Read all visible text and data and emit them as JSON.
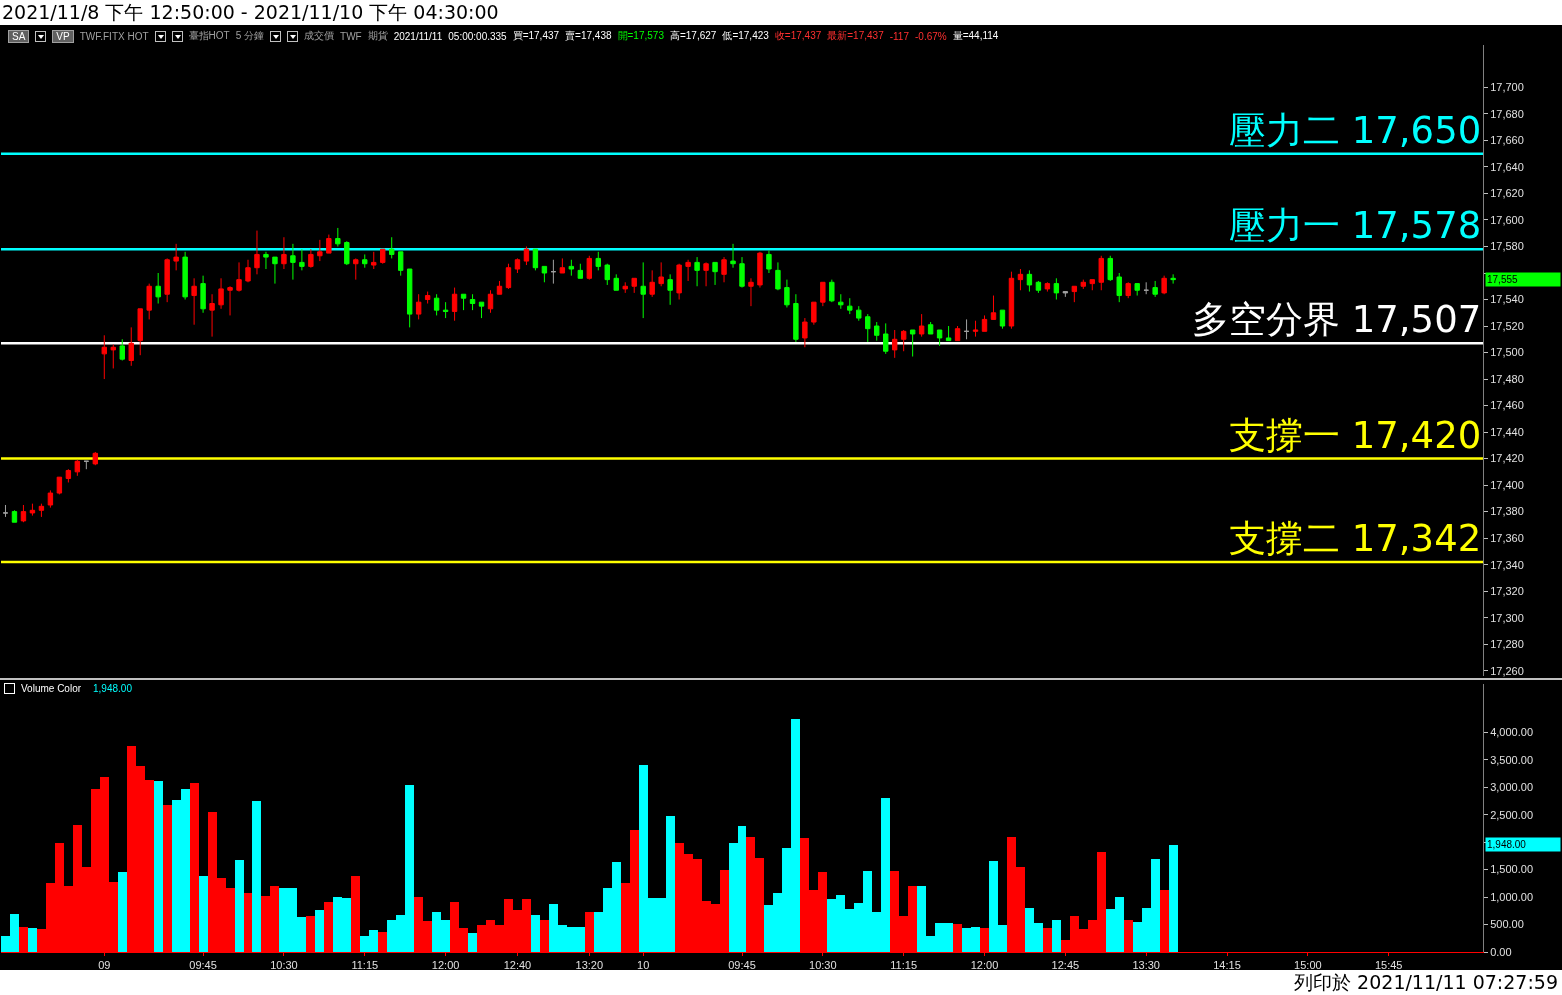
{
  "chart_data": [
    {
      "type": "candlestick",
      "title": "2021/11/8 下午 12:50:00 - 2021/11/10 下午 04:30:00",
      "annotations": [
        "SA",
        "VP",
        "TWF.FITX HOT",
        "臺指HOT",
        "5 分鐘",
        "成交價",
        "TWF",
        "期貨",
        "2021/11/11",
        "05:00:00.335",
        "買=17,437",
        "賣=17,438",
        "開=17,573",
        "高=17,627",
        "低=17,423",
        "收=17,437",
        "最新=17,437",
        "-117",
        "-0.67%",
        "量=44,114",
        "17,555"
      ],
      "categories": [
        null,
        null,
        null,
        null,
        null,
        null,
        null,
        null,
        null,
        null,
        null,
        null,
        null,
        null,
        null,
        null,
        null,
        null,
        null,
        null,
        null,
        null,
        null,
        null,
        null,
        null,
        null,
        null,
        null,
        null,
        null,
        null,
        null,
        null,
        null,
        null,
        null,
        null,
        null,
        null,
        null,
        null,
        null,
        null,
        null,
        null,
        null,
        null,
        null,
        null,
        null,
        null,
        null,
        null,
        null,
        null,
        null,
        null,
        null,
        null,
        null,
        null,
        null,
        null,
        null,
        null,
        null,
        null,
        null,
        null,
        null,
        null,
        null,
        null,
        null,
        null,
        null,
        null,
        null,
        null,
        null,
        null,
        null,
        null,
        null,
        null,
        null,
        null,
        null,
        null,
        null,
        null,
        null,
        null,
        null,
        null,
        null,
        null,
        null,
        null,
        null,
        null,
        null,
        null,
        null,
        null,
        null,
        null,
        null,
        null,
        null,
        null,
        null,
        null,
        null,
        null,
        null,
        null,
        null,
        null,
        null,
        null,
        null,
        null,
        null,
        null,
        null,
        null,
        null,
        null,
        null,
        null,
        null,
        null,
        null,
        null,
        null,
        null,
        null,
        null,
        null,
        null,
        null,
        null,
        null,
        null,
        null,
        null,
        null,
        null,
        null,
        null,
        null,
        null,
        null,
        null,
        null,
        null,
        null,
        null,
        null,
        null,
        null,
        null,
        null
      ],
      "ohlc": [
        [
          17379,
          17385,
          17376,
          17379
        ],
        [
          17380,
          17381,
          17372,
          17372
        ],
        [
          17373,
          17385,
          17372,
          17380
        ],
        [
          17379,
          17386,
          17377,
          17381
        ],
        [
          17381,
          17386,
          17376,
          17384
        ],
        [
          17385,
          17396,
          17383,
          17394
        ],
        [
          17394,
          17406,
          17393,
          17406
        ],
        [
          17405,
          17412,
          17402,
          17411
        ],
        [
          17410,
          17419,
          17407,
          17418
        ],
        [
          17418,
          17418,
          17412,
          17418
        ],
        [
          17416,
          17425,
          17415,
          17424
        ],
        [
          17499,
          17513,
          17480,
          17504
        ],
        [
          17502,
          17506,
          17488,
          17504
        ],
        [
          17505,
          17510,
          17494,
          17495
        ],
        [
          17494,
          17519,
          17490,
          17507
        ],
        [
          17509,
          17533,
          17498,
          17533
        ],
        [
          17532,
          17552,
          17525,
          17550
        ],
        [
          17550,
          17560,
          17537,
          17542
        ],
        [
          17544,
          17571,
          17538,
          17570
        ],
        [
          17569,
          17582,
          17562,
          17572
        ],
        [
          17572,
          17576,
          17540,
          17542
        ],
        [
          17543,
          17556,
          17521,
          17550
        ],
        [
          17552,
          17558,
          17530,
          17533
        ],
        [
          17532,
          17544,
          17512,
          17537
        ],
        [
          17536,
          17556,
          17533,
          17548
        ],
        [
          17547,
          17550,
          17528,
          17549
        ],
        [
          17547,
          17568,
          17546,
          17555
        ],
        [
          17554,
          17570,
          17553,
          17564
        ],
        [
          17564,
          17592,
          17559,
          17574
        ],
        [
          17574,
          17576,
          17563,
          17572
        ],
        [
          17572,
          17572,
          17552,
          17567
        ],
        [
          17567,
          17587,
          17563,
          17574
        ],
        [
          17573,
          17582,
          17555,
          17568
        ],
        [
          17568,
          17578,
          17562,
          17565
        ],
        [
          17565,
          17578,
          17564,
          17574
        ],
        [
          17573,
          17585,
          17569,
          17576
        ],
        [
          17575,
          17589,
          17575,
          17586
        ],
        [
          17586,
          17594,
          17580,
          17582
        ],
        [
          17583,
          17584,
          17566,
          17567
        ],
        [
          17567,
          17571,
          17555,
          17570
        ],
        [
          17570,
          17574,
          17564,
          17567
        ],
        [
          17566,
          17576,
          17563,
          17568
        ],
        [
          17568,
          17578,
          17567,
          17578
        ],
        [
          17578,
          17587,
          17571,
          17574
        ],
        [
          17576,
          17576,
          17558,
          17562
        ],
        [
          17563,
          17563,
          17519,
          17529
        ],
        [
          17529,
          17544,
          17525,
          17538
        ],
        [
          17540,
          17546,
          17537,
          17543
        ],
        [
          17541,
          17544,
          17528,
          17532
        ],
        [
          17532,
          17538,
          17526,
          17531
        ],
        [
          17531,
          17549,
          17524,
          17544
        ],
        [
          17544,
          17544,
          17532,
          17541
        ],
        [
          17540,
          17544,
          17532,
          17537
        ],
        [
          17538,
          17538,
          17526,
          17535
        ],
        [
          17533,
          17547,
          17530,
          17544
        ],
        [
          17544,
          17554,
          17544,
          17550
        ],
        [
          17549,
          17567,
          17548,
          17564
        ],
        [
          17563,
          17571,
          17560,
          17570
        ],
        [
          17569,
          17580,
          17566,
          17578
        ],
        [
          17578,
          17578,
          17562,
          17564
        ],
        [
          17565,
          17565,
          17553,
          17560
        ],
        [
          17561,
          17570,
          17552,
          17561
        ],
        [
          17560,
          17571,
          17560,
          17564
        ],
        [
          17565,
          17570,
          17558,
          17563
        ],
        [
          17562,
          17567,
          17556,
          17556
        ],
        [
          17556,
          17573,
          17555,
          17571
        ],
        [
          17571,
          17576,
          17562,
          17565
        ],
        [
          17566,
          17567,
          17551,
          17555
        ],
        [
          17556,
          17559,
          17547,
          17547
        ],
        [
          17548,
          17553,
          17545,
          17550
        ],
        [
          17550,
          17556,
          17545,
          17556
        ],
        [
          17550,
          17568,
          17526,
          17544
        ],
        [
          17544,
          17562,
          17542,
          17553
        ],
        [
          17552,
          17568,
          17550,
          17557
        ],
        [
          17555,
          17559,
          17536,
          17547
        ],
        [
          17545,
          17567,
          17540,
          17566
        ],
        [
          17565,
          17570,
          17554,
          17568
        ],
        [
          17568,
          17572,
          17550,
          17562
        ],
        [
          17562,
          17568,
          17550,
          17567
        ],
        [
          17568,
          17568,
          17551,
          17561
        ],
        [
          17559,
          17572,
          17553,
          17570
        ],
        [
          17569,
          17582,
          17564,
          17567
        ],
        [
          17567,
          17572,
          17549,
          17550
        ],
        [
          17550,
          17556,
          17535,
          17553
        ],
        [
          17551,
          17576,
          17549,
          17575
        ],
        [
          17574,
          17577,
          17560,
          17563
        ],
        [
          17562,
          17568,
          17547,
          17548
        ],
        [
          17549,
          17555,
          17534,
          17536
        ],
        [
          17537,
          17544,
          17508,
          17510
        ],
        [
          17511,
          17526,
          17504,
          17523
        ],
        [
          17523,
          17538,
          17521,
          17538
        ],
        [
          17538,
          17553,
          17535,
          17553
        ],
        [
          17553,
          17555,
          17538,
          17539
        ],
        [
          17538,
          17544,
          17533,
          17536
        ],
        [
          17535,
          17541,
          17529,
          17532
        ],
        [
          17532,
          17535,
          17524,
          17526
        ],
        [
          17527,
          17529,
          17508,
          17518
        ],
        [
          17520,
          17523,
          17509,
          17513
        ],
        [
          17514,
          17522,
          17499,
          17501
        ],
        [
          17502,
          17517,
          17496,
          17510
        ],
        [
          17510,
          17517,
          17501,
          17516
        ],
        [
          17517,
          17517,
          17497,
          17514
        ],
        [
          17514,
          17529,
          17512,
          17520
        ],
        [
          17521,
          17523,
          17514,
          17514
        ],
        [
          17517,
          17517,
          17505,
          17511
        ],
        [
          17511,
          17520,
          17509,
          17509
        ],
        [
          17509,
          17520,
          17509,
          17518
        ],
        [
          17516,
          17525,
          17510,
          17516
        ],
        [
          17516,
          17524,
          17512,
          17517
        ],
        [
          17516,
          17528,
          17516,
          17525
        ],
        [
          17525,
          17543,
          17525,
          17530
        ],
        [
          17532,
          17532,
          17518,
          17520
        ],
        [
          17520,
          17561,
          17518,
          17556
        ],
        [
          17555,
          17563,
          17547,
          17559
        ],
        [
          17559,
          17562,
          17546,
          17551
        ],
        [
          17553,
          17554,
          17545,
          17547
        ],
        [
          17548,
          17553,
          17546,
          17552
        ],
        [
          17552,
          17556,
          17540,
          17545
        ],
        [
          17546,
          17546,
          17542,
          17545
        ],
        [
          17546,
          17550,
          17538,
          17550
        ],
        [
          17550,
          17555,
          17548,
          17553
        ],
        [
          17552,
          17555,
          17547,
          17555
        ],
        [
          17553,
          17573,
          17547,
          17571
        ],
        [
          17571,
          17573,
          17554,
          17555
        ],
        [
          17557,
          17560,
          17538,
          17543
        ],
        [
          17543,
          17553,
          17541,
          17552
        ],
        [
          17552,
          17552,
          17543,
          17547
        ],
        [
          17547,
          17553,
          17544,
          17547
        ],
        [
          17549,
          17554,
          17542,
          17544
        ],
        [
          17545,
          17558,
          17544,
          17556
        ],
        [
          17556,
          17559,
          17552,
          17555
        ],
        null,
        null,
        null,
        null,
        null,
        null,
        null,
        null,
        null,
        null,
        null,
        null,
        null,
        null,
        null,
        null,
        null,
        null,
        null,
        null,
        null,
        null,
        null,
        null,
        null,
        null,
        null,
        null,
        null,
        null,
        null,
        null,
        null,
        null
      ],
      "colors": [
        "#a0a0a0",
        "#00ff00",
        "#ff0000",
        "#ff0000",
        "#ff0000",
        "#ff0000",
        "#ff0000",
        "#ff0000",
        "#ff0000",
        "#a0a0a0",
        "#ff0000",
        "#ff0000",
        "#ff0000",
        "#00ff00",
        "#ff0000",
        "#ff0000",
        "#ff0000",
        "#00ff00",
        "#ff0000",
        "#ff0000",
        "#00ff00",
        "#ff0000",
        "#00ff00",
        "#ff0000",
        "#ff0000",
        "#ff0000",
        "#ff0000",
        "#ff0000",
        "#ff0000",
        "#00ff00",
        "#00ff00",
        "#ff0000",
        "#00ff00",
        "#00ff00",
        "#ff0000",
        "#ff0000",
        "#ff0000",
        "#00ff00",
        "#00ff00",
        "#ff0000",
        "#00ff00",
        "#ff0000",
        "#ff0000",
        "#00ff00",
        "#00ff00",
        "#00ff00",
        "#ff0000",
        "#ff0000",
        "#00ff00",
        "#00ff00",
        "#ff0000",
        "#00ff00",
        "#00ff00",
        "#00ff00",
        "#ff0000",
        "#ff0000",
        "#ff0000",
        "#ff0000",
        "#ff0000",
        "#00ff00",
        "#00ff00",
        "#a0a0a0",
        "#ff0000",
        "#00ff00",
        "#00ff00",
        "#ff0000",
        "#00ff00",
        "#00ff00",
        "#00ff00",
        "#ff0000",
        "#ff0000",
        "#00ff00",
        "#ff0000",
        "#ff0000",
        "#00ff00",
        "#ff0000",
        "#ff0000",
        "#00ff00",
        "#ff0000",
        "#00ff00",
        "#ff0000",
        "#00ff00",
        "#00ff00",
        "#ff0000",
        "#ff0000",
        "#00ff00",
        "#00ff00",
        "#00ff00",
        "#00ff00",
        "#ff0000",
        "#ff0000",
        "#ff0000",
        "#00ff00",
        "#00ff00",
        "#00ff00",
        "#00ff00",
        "#00ff00",
        "#00ff00",
        "#00ff00",
        "#ff0000",
        "#ff0000",
        "#00ff00",
        "#ff0000",
        "#00ff00",
        "#00ff00",
        "#00ff00",
        "#ff0000",
        "#a0a0a0",
        "#ff0000",
        "#ff0000",
        "#ff0000",
        "#00ff00",
        "#ff0000",
        "#ff0000",
        "#00ff00",
        "#00ff00",
        "#ff0000",
        "#00ff00",
        "#a0a0a0",
        "#ff0000",
        "#ff0000",
        "#ff0000",
        "#ff0000",
        "#00ff00",
        "#00ff00",
        "#ff0000",
        "#00ff00",
        "#a0a0a0",
        "#00ff00",
        "#ff0000",
        "#00ff00",
        null,
        null,
        null,
        null,
        null,
        null,
        null,
        null,
        null,
        null,
        null,
        null,
        null,
        null,
        null,
        null,
        null,
        null,
        null,
        null,
        null,
        null,
        null,
        null,
        null,
        null,
        null,
        null,
        null,
        null,
        null,
        null,
        null,
        null
      ],
      "ylim": [
        17256,
        17732
      ],
      "yticks": [
        {
          "value": 17260,
          "label": "17,260"
        },
        {
          "value": 17280,
          "label": "17,280"
        },
        {
          "value": 17300,
          "label": "17,300"
        },
        {
          "value": 17320,
          "label": "17,320"
        },
        {
          "value": 17340,
          "label": "17,340"
        },
        {
          "value": 17360,
          "label": "17,360"
        },
        {
          "value": 17380,
          "label": "17,380"
        },
        {
          "value": 17400,
          "label": "17,400"
        },
        {
          "value": 17420,
          "label": "17,420"
        },
        {
          "value": 17440,
          "label": "17,440"
        },
        {
          "value": 17460,
          "label": "17,460"
        },
        {
          "value": 17480,
          "label": "17,480"
        },
        {
          "value": 17500,
          "label": "17,500"
        },
        {
          "value": 17520,
          "label": "17,520"
        },
        {
          "value": 17540,
          "label": "17,540"
        },
        {
          "value": 17560,
          "label": null
        },
        {
          "value": 17580,
          "label": "17,580"
        },
        {
          "value": 17600,
          "label": "17,600"
        },
        {
          "value": 17620,
          "label": "17,620"
        },
        {
          "value": 17640,
          "label": "17,640"
        },
        {
          "value": 17660,
          "label": "17,660"
        },
        {
          "value": 17680,
          "label": "17,680"
        },
        {
          "value": 17700,
          "label": "17,700"
        }
      ],
      "tick_labels": "y",
      "ref_lines": [
        {
          "axis": "y",
          "value": 17650,
          "label": "壓力二 17,650",
          "color": "#00ffff"
        },
        {
          "axis": "y",
          "value": 17578,
          "label": "壓力一 17,578",
          "color": "#00ffff"
        },
        {
          "axis": "y",
          "value": 17507,
          "label": "多空分界 17,507",
          "color": "#ffffff"
        },
        {
          "axis": "y",
          "value": 17420,
          "label": "支撐一 17,420",
          "color": "#ffff00"
        },
        {
          "axis": "y",
          "value": 17342,
          "label": "支撐二 17,342",
          "color": "#ffff00"
        }
      ]
    },
    {
      "type": "bar",
      "title": "Volume Color",
      "subtitle": "1,948.00",
      "annotations": [
        "1,948.00",
        "列印於 2021/11/11 07:27:59"
      ],
      "categories": [
        null,
        null,
        null,
        null,
        null,
        null,
        null,
        null,
        null,
        null,
        null,
        "09",
        null,
        null,
        null,
        null,
        null,
        null,
        null,
        null,
        null,
        null,
        "09:45",
        null,
        null,
        null,
        null,
        null,
        null,
        null,
        null,
        "10:30",
        null,
        null,
        null,
        null,
        null,
        null,
        null,
        null,
        "11:15",
        null,
        null,
        null,
        null,
        null,
        null,
        null,
        null,
        "12:00",
        null,
        null,
        null,
        null,
        null,
        null,
        null,
        "12:40",
        null,
        null,
        null,
        null,
        null,
        null,
        null,
        "13:20",
        null,
        null,
        null,
        null,
        null,
        "10",
        null,
        null,
        null,
        null,
        null,
        null,
        null,
        null,
        null,
        null,
        "09:45",
        null,
        null,
        null,
        null,
        null,
        null,
        null,
        null,
        "10:30",
        null,
        null,
        null,
        null,
        null,
        null,
        null,
        null,
        "11:15",
        null,
        null,
        null,
        null,
        null,
        null,
        null,
        null,
        "12:00",
        null,
        null,
        null,
        null,
        null,
        null,
        null,
        null,
        "12:45",
        null,
        null,
        null,
        null,
        null,
        null,
        null,
        null,
        "13:30",
        null,
        null,
        null,
        null,
        null,
        null,
        null,
        null,
        "14:15",
        null,
        null,
        null,
        null,
        null,
        null,
        null,
        null,
        "15:00",
        null,
        null,
        null,
        null,
        null,
        null,
        null,
        null,
        "15:45",
        null,
        null,
        null,
        null,
        null,
        null,
        null,
        null,
        null,
        null
      ],
      "values": [
        300,
        690,
        460,
        440,
        410,
        1260,
        1990,
        1210,
        2320,
        1540,
        2960,
        3180,
        1280,
        1460,
        3760,
        3390,
        3140,
        3120,
        2680,
        2770,
        2960,
        3070,
        1390,
        2550,
        1340,
        1160,
        1670,
        1070,
        2750,
        1020,
        1210,
        1160,
        1160,
        630,
        660,
        770,
        910,
        1000,
        980,
        1390,
        300,
        400,
        360,
        590,
        680,
        3050,
        1000,
        570,
        730,
        590,
        910,
        440,
        340,
        500,
        590,
        490,
        960,
        770,
        960,
        680,
        590,
        870,
        500,
        460,
        460,
        720,
        720,
        1160,
        1630,
        1260,
        2230,
        3410,
        980,
        980,
        2480,
        1980,
        1780,
        1690,
        930,
        870,
        1500,
        1990,
        2300,
        2090,
        1710,
        850,
        1070,
        1890,
        4240,
        2070,
        1130,
        1460,
        960,
        1030,
        790,
        900,
        1480,
        720,
        2800,
        1480,
        660,
        1210,
        1210,
        290,
        530,
        520,
        510,
        430,
        460,
        440,
        1660,
        490,
        2100,
        1550,
        800,
        520,
        430,
        590,
        220,
        660,
        410,
        590,
        1820,
        790,
        1000,
        590,
        550,
        800,
        1690,
        1130,
        1950,
        null,
        null,
        null,
        null,
        null,
        null,
        null,
        null,
        null,
        null,
        null,
        null,
        null,
        null,
        null,
        null,
        null,
        null,
        null,
        null,
        null,
        null,
        null,
        null,
        null,
        null,
        null,
        null,
        null,
        null,
        null,
        null,
        null,
        null
      ],
      "colors": [
        "#00ffff",
        "#00ffff",
        "#ff0000",
        "#00ffff",
        "#ff0000",
        "#ff0000",
        "#ff0000",
        "#ff0000",
        "#ff0000",
        "#ff0000",
        "#ff0000",
        "#ff0000",
        "#ff0000",
        "#00ffff",
        "#ff0000",
        "#ff0000",
        "#ff0000",
        "#00ffff",
        "#ff0000",
        "#00ffff",
        "#00ffff",
        "#ff0000",
        "#00ffff",
        "#ff0000",
        "#ff0000",
        "#ff0000",
        "#00ffff",
        "#ff0000",
        "#00ffff",
        "#ff0000",
        "#ff0000",
        "#00ffff",
        "#00ffff",
        "#00ffff",
        "#ff0000",
        "#00ffff",
        "#ff0000",
        "#00ffff",
        "#00ffff",
        "#ff0000",
        "#00ffff",
        "#00ffff",
        "#ff0000",
        "#00ffff",
        "#00ffff",
        "#00ffff",
        "#ff0000",
        "#ff0000",
        "#00ffff",
        "#00ffff",
        "#ff0000",
        "#ff0000",
        "#00ffff",
        "#ff0000",
        "#ff0000",
        "#ff0000",
        "#ff0000",
        "#ff0000",
        "#ff0000",
        "#00ffff",
        "#ff0000",
        "#00ffff",
        "#00ffff",
        "#00ffff",
        "#00ffff",
        "#ff0000",
        "#00ffff",
        "#00ffff",
        "#00ffff",
        "#ff0000",
        "#ff0000",
        "#00ffff",
        "#00ffff",
        "#00ffff",
        "#00ffff",
        "#ff0000",
        "#ff0000",
        "#ff0000",
        "#ff0000",
        "#ff0000",
        "#ff0000",
        "#00ffff",
        "#00ffff",
        "#ff0000",
        "#ff0000",
        "#00ffff",
        "#00ffff",
        "#00ffff",
        "#00ffff",
        "#ff0000",
        "#ff0000",
        "#ff0000",
        "#00ffff",
        "#00ffff",
        "#00ffff",
        "#00ffff",
        "#00ffff",
        "#00ffff",
        "#00ffff",
        "#ff0000",
        "#ff0000",
        "#ff0000",
        "#00ffff",
        "#00ffff",
        "#00ffff",
        "#00ffff",
        "#ff0000",
        "#00ffff",
        "#00ffff",
        "#ff0000",
        "#00ffff",
        "#00ffff",
        "#ff0000",
        "#ff0000",
        "#00ffff",
        "#00ffff",
        "#ff0000",
        "#00ffff",
        "#ff0000",
        "#ff0000",
        "#ff0000",
        "#ff0000",
        "#ff0000",
        "#00ffff",
        "#00ffff",
        "#ff0000",
        "#00ffff",
        "#00ffff",
        "#00ffff",
        "#ff0000",
        "#00ffff",
        null,
        null,
        null,
        null,
        null,
        null,
        null,
        null,
        null,
        null,
        null,
        null,
        null,
        null,
        null,
        null,
        null,
        null,
        null,
        null,
        null,
        null,
        null,
        null,
        null,
        null,
        null,
        null,
        null,
        null,
        null,
        null,
        null,
        null
      ],
      "ylim": [
        0,
        4880
      ],
      "yticks": [
        {
          "value": 0,
          "label": "0.00"
        },
        {
          "value": 500,
          "label": "500.00"
        },
        {
          "value": 1000,
          "label": "1,000.00"
        },
        {
          "value": 1500,
          "label": "1,500.00"
        },
        {
          "value": 2000,
          "label": null
        },
        {
          "value": 2500,
          "label": "2,500.00"
        },
        {
          "value": 3000,
          "label": "3,000.00"
        },
        {
          "value": 3500,
          "label": "3,500.00"
        },
        {
          "value": 4000,
          "label": "4,000.00"
        }
      ]
    }
  ]
}
